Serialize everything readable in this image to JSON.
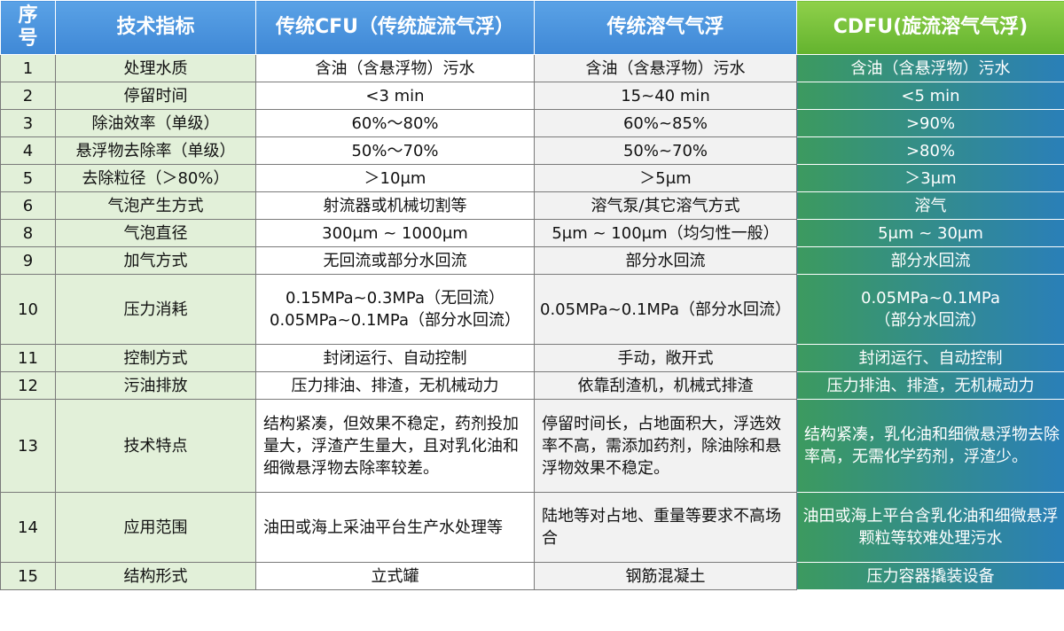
{
  "headers": [
    "序号",
    "技术指标",
    "传统CFU（传统旋流气浮）",
    "传统溶气气浮",
    "CDFU(旋流溶气气浮)"
  ],
  "rows": [
    {
      "no": "1",
      "metric": "处理水质",
      "cfu": "含油（含悬浮物）污水",
      "dis": "含油（含悬浮物）污水",
      "cdfu": "含油（含悬浮物）污水"
    },
    {
      "no": "2",
      "metric": "停留时间",
      "cfu": "<3 min",
      "dis": "15~40 min",
      "cdfu": "<5 min"
    },
    {
      "no": "3",
      "metric": "除油效率（单级）",
      "cfu": "60%～80%",
      "dis": "60%~85%",
      "cdfu": ">90%"
    },
    {
      "no": "4",
      "metric": "悬浮物去除率（单级）",
      "cfu": "50%～70%",
      "dis": "50%~70%",
      "cdfu": ">80%"
    },
    {
      "no": "5",
      "metric": "去除粒径（＞80%）",
      "cfu": "＞10μm",
      "dis": "＞5μm",
      "cdfu": "＞3μm"
    },
    {
      "no": "6",
      "metric": "气泡产生方式",
      "cfu": "射流器或机械切割等",
      "dis": "溶气泵/其它溶气方式",
      "cdfu": "溶气"
    },
    {
      "no": "8",
      "metric": "气泡直径",
      "cfu": "300μm ~ 1000μm",
      "dis": "5μm ~ 100μm（均匀性一般）",
      "cdfu": "5μm ~ 30μm"
    },
    {
      "no": "9",
      "metric": "加气方式",
      "cfu": "无回流或部分水回流",
      "dis": "部分水回流",
      "cdfu": "部分水回流"
    },
    {
      "no": "10",
      "metric": "压力消耗",
      "cfu": "0.15MPa~0.3MPa（无回流）\n0.05MPa~0.1MPa（部分水回流）",
      "dis": "0.05MPa~0.1MPa（部分水回流）",
      "cdfu": "0.05MPa~0.1MPa\n（部分水回流）"
    },
    {
      "no": "11",
      "metric": "控制方式",
      "cfu": "封闭运行、自动控制",
      "dis": "手动，敞开式",
      "cdfu": "封闭运行、自动控制"
    },
    {
      "no": "12",
      "metric": "污油排放",
      "cfu": "压力排油、排渣，无机械动力",
      "dis": "依靠刮渣机，机械式排渣",
      "cdfu": "压力排油、排渣，无机械动力"
    },
    {
      "no": "13",
      "metric": "技术特点",
      "cfu": "结构紧凑，但效果不稳定，药剂投加量大，浮渣产生量大，且对乳化油和细微悬浮物去除率较差。",
      "dis": "停留时间长，占地面积大，浮选效率不高，需添加药剂，除油除和悬浮物效果不稳定。",
      "cdfu": "结构紧凑，乳化油和细微悬浮物去除率高，无需化学药剂，浮渣少。"
    },
    {
      "no": "14",
      "metric": "应用范围",
      "cfu": "油田或海上采油平台生产水处理等",
      "dis": "陆地等对占地、重量等要求不高场合",
      "cdfu": "油田或海上平台含乳化油和细微悬浮颗粒等较难处理污水"
    },
    {
      "no": "15",
      "metric": "结构形式",
      "cfu": "立式罐",
      "dis": "钢筋混凝土",
      "cdfu": "压力容器撬装设备"
    }
  ]
}
